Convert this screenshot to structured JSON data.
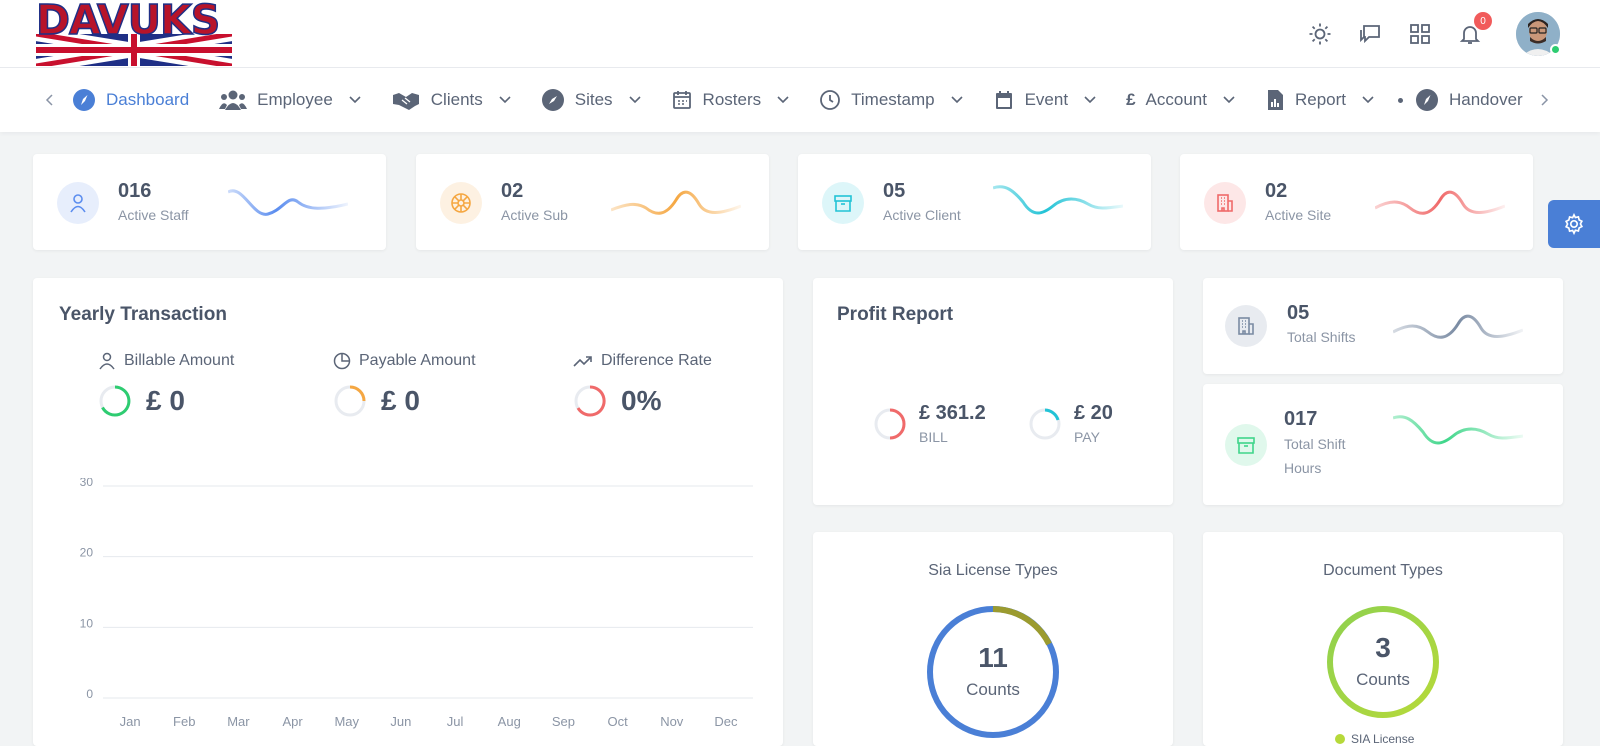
{
  "brand": {
    "logo_text": "DAVUKS"
  },
  "header": {
    "notification_count": "0",
    "icons": [
      "sun-icon",
      "chat-icon",
      "apps-grid-icon",
      "bell-icon"
    ]
  },
  "nav": {
    "items": [
      {
        "label": "Dashboard",
        "icon": "compass-icon",
        "active": true,
        "dropdown": false
      },
      {
        "label": "Employee",
        "icon": "users-icon",
        "dropdown": true
      },
      {
        "label": "Clients",
        "icon": "handshake-icon",
        "dropdown": true
      },
      {
        "label": "Sites",
        "icon": "compass-icon",
        "dropdown": true
      },
      {
        "label": "Rosters",
        "icon": "calendar-icon",
        "dropdown": true
      },
      {
        "label": "Timestamp",
        "icon": "clock-icon",
        "dropdown": true
      },
      {
        "label": "Event",
        "icon": "calendar-icon",
        "dropdown": true
      },
      {
        "label": "Account",
        "icon": "pound-icon",
        "dropdown": true
      },
      {
        "label": "Report",
        "icon": "report-icon",
        "dropdown": true
      },
      {
        "label": "Handover",
        "icon": "compass-icon",
        "dropdown": false
      }
    ]
  },
  "stats": [
    {
      "value": "016",
      "label": "Active Staff",
      "color": "#5b8def",
      "bg": "#e7eefc",
      "icon": "user-icon"
    },
    {
      "value": "02",
      "label": "Active Sub",
      "color": "#f5a742",
      "bg": "#fdf1e2",
      "icon": "wheel-icon"
    },
    {
      "value": "05",
      "label": "Active Client",
      "color": "#22c3d6",
      "bg": "#ddf6f9",
      "icon": "archive-icon"
    },
    {
      "value": "02",
      "label": "Active Site",
      "color": "#f06a6a",
      "bg": "#fde7e7",
      "icon": "building-icon"
    }
  ],
  "yearly": {
    "title": "Yearly Transaction",
    "metrics": [
      {
        "label": "Billable Amount",
        "value": "£ 0",
        "icon": "user-icon",
        "color": "#2ecc71"
      },
      {
        "label": "Payable Amount",
        "value": "£ 0",
        "icon": "pie-icon",
        "color": "#f5a742"
      },
      {
        "label": "Difference Rate",
        "value": "0%",
        "icon": "trend-icon",
        "color": "#f06a6a"
      }
    ]
  },
  "chart_data": {
    "type": "bar",
    "categories": [
      "Jan",
      "Feb",
      "Mar",
      "Apr",
      "May",
      "Jun",
      "Jul",
      "Aug",
      "Sep",
      "Oct",
      "Nov",
      "Dec"
    ],
    "values": [
      0,
      0,
      0,
      0,
      0,
      0,
      0,
      0,
      0,
      0,
      0,
      0
    ],
    "yticks": [
      "30",
      "20",
      "10",
      "0"
    ],
    "ylim": [
      0,
      30
    ],
    "grid": true
  },
  "profit": {
    "title": "Profit Report",
    "bill": {
      "value": "£ 361.2",
      "label": "BILL",
      "color": "#f06a6a"
    },
    "pay": {
      "value": "£ 20",
      "label": "PAY",
      "color": "#22c3d6"
    }
  },
  "shifts": [
    {
      "value": "05",
      "label": "Total Shifts",
      "color": "#7a8ba3",
      "bg": "#e8ebf0",
      "icon": "building-icon"
    },
    {
      "value": "017",
      "label_line1": "Total Shift",
      "label_line2": "Hours",
      "color": "#3fd68a",
      "bg": "#e0f8ec",
      "icon": "archive-icon"
    }
  ],
  "sia": {
    "title": "Sia License Types",
    "count": "11",
    "count_label": "Counts"
  },
  "docs": {
    "title": "Document Types",
    "count": "3",
    "count_label": "Counts",
    "legend": "SIA License"
  }
}
